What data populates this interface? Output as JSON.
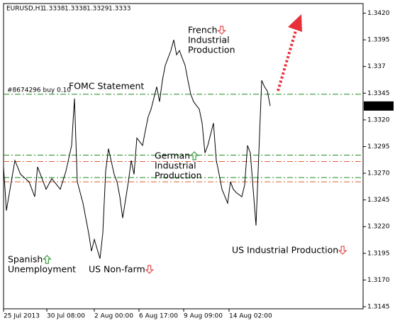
{
  "chart_data": {
    "type": "line",
    "title": "EURUSD,H1",
    "header_values": [
      1.3338,
      1.3338,
      1.3329,
      1.3333
    ],
    "x": [
      0,
      1,
      4,
      6,
      9,
      11,
      12,
      15,
      17,
      20,
      22,
      24,
      25,
      26,
      28,
      30,
      31,
      32,
      34,
      35,
      36,
      37,
      39,
      40,
      41,
      42,
      44,
      45,
      46,
      47,
      49,
      50,
      51,
      52,
      54,
      55,
      56,
      57,
      59,
      60,
      61,
      62,
      64,
      65,
      66,
      67,
      69,
      70,
      71,
      72,
      74,
      75,
      76,
      77,
      79,
      80,
      81,
      82,
      84,
      85,
      86,
      87,
      89,
      90,
      91,
      92,
      93,
      94
    ],
    "series": [
      {
        "color": "#000000",
        "values": [
          1.3276,
          1.3235,
          1.3282,
          1.3269,
          1.3262,
          1.3248,
          1.3276,
          1.3255,
          1.3265,
          1.3255,
          1.3272,
          1.3296,
          1.334,
          1.3262,
          1.3242,
          1.3214,
          1.3197,
          1.3208,
          1.319,
          1.3214,
          1.3272,
          1.3293,
          1.3269,
          1.3262,
          1.3248,
          1.3228,
          1.3262,
          1.3282,
          1.3269,
          1.3303,
          1.3296,
          1.331,
          1.3323,
          1.333,
          1.3351,
          1.3337,
          1.3357,
          1.3371,
          1.3385,
          1.3395,
          1.3381,
          1.3385,
          1.3371,
          1.3357,
          1.3344,
          1.3337,
          1.333,
          1.3317,
          1.3289,
          1.3296,
          1.3317,
          1.3282,
          1.3269,
          1.3255,
          1.3242,
          1.3262,
          1.3255,
          1.3252,
          1.3248,
          1.3259,
          1.3296,
          1.3289,
          1.3221,
          1.3289,
          1.3357,
          1.3351,
          1.3347,
          1.3333
        ]
      }
    ],
    "xlim": [
      0,
      126.75
    ],
    "xticks": [
      {
        "value": 0,
        "label": "25 Jul 2013"
      },
      {
        "value": 15.25,
        "label": "30 Jul 08:00"
      },
      {
        "value": 32,
        "label": "2 Aug 00:00"
      },
      {
        "value": 47.75,
        "label": "6 Aug 17:00"
      },
      {
        "value": 63.5,
        "label": "9 Aug 09:00"
      },
      {
        "value": 79.5,
        "label": "14 Aug 02:00"
      }
    ],
    "ylim": [
      1.3143,
      1.3429
    ],
    "yticks": [
      {
        "value": 1.342,
        "label": "1.3420"
      },
      1.3395,
      1.337,
      1.3345,
      {
        "value": 1.332,
        "label": "1.3320"
      },
      1.3295,
      {
        "value": 1.327,
        "label": "1.3270"
      },
      1.3245,
      {
        "value": 1.322,
        "label": "1.3220"
      },
      1.3195,
      {
        "value": 1.317,
        "label": "1.3170"
      },
      1.3145
    ],
    "last_price": 1.3333,
    "levels": [
      {
        "value": 1.3344,
        "label": "#8674296 buy 0.10",
        "color": "#228b22"
      },
      {
        "value": 1.3287,
        "color": "#228b22"
      },
      {
        "value": 1.3281,
        "color": "#e0603a"
      },
      {
        "value": 1.3266,
        "color": "#228b22"
      },
      {
        "value": 1.3262,
        "color": "#e0603a"
      }
    ],
    "annotations": [
      {
        "lines": [
          "FOMC Statement"
        ]
      },
      {
        "lines": [
          "French",
          "Industrial",
          "Production"
        ],
        "direction": "down"
      },
      {
        "lines": [
          "German",
          "Industrial",
          "Production"
        ],
        "direction": "up"
      },
      {
        "lines": [
          "Spanish",
          "Unemployment"
        ],
        "direction": "up"
      },
      {
        "lines": [
          "US Non-farm"
        ],
        "direction": "down"
      },
      {
        "lines": [
          "US Industrial Production"
        ],
        "direction": "down"
      }
    ]
  }
}
